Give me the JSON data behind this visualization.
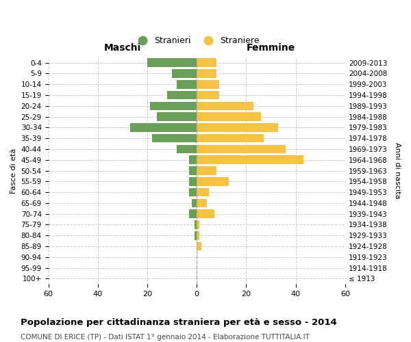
{
  "age_groups": [
    "100+",
    "95-99",
    "90-94",
    "85-89",
    "80-84",
    "75-79",
    "70-74",
    "65-69",
    "60-64",
    "55-59",
    "50-54",
    "45-49",
    "40-44",
    "35-39",
    "30-34",
    "25-29",
    "20-24",
    "15-19",
    "10-14",
    "5-9",
    "0-4"
  ],
  "birth_years": [
    "≤ 1913",
    "1914-1918",
    "1919-1923",
    "1924-1928",
    "1929-1933",
    "1934-1938",
    "1939-1943",
    "1944-1948",
    "1949-1953",
    "1954-1958",
    "1959-1963",
    "1964-1968",
    "1969-1973",
    "1974-1978",
    "1979-1983",
    "1984-1988",
    "1989-1993",
    "1994-1998",
    "1999-2003",
    "2004-2008",
    "2009-2013"
  ],
  "maschi": [
    0,
    0,
    0,
    0,
    1,
    1,
    3,
    2,
    3,
    3,
    3,
    3,
    8,
    18,
    27,
    16,
    19,
    12,
    8,
    10,
    20
  ],
  "femmine": [
    0,
    0,
    0,
    2,
    1,
    1,
    7,
    4,
    5,
    13,
    8,
    43,
    36,
    27,
    33,
    26,
    23,
    9,
    9,
    8,
    8
  ],
  "maschi_color": "#6a9f58",
  "femmine_color": "#f5c242",
  "background_color": "#ffffff",
  "grid_color": "#cccccc",
  "title": "Popolazione per cittadinanza straniera per età e sesso - 2014",
  "subtitle": "COMUNE DI ERICE (TP) - Dati ISTAT 1° gennaio 2014 - Elaborazione TUTTITALIA.IT",
  "xlabel_left": "Maschi",
  "xlabel_right": "Femmine",
  "ylabel_left": "Fasce di età",
  "ylabel_right": "Anni di nascita",
  "legend_stranieri": "Stranieri",
  "legend_straniere": "Straniere",
  "xlim": 60,
  "bar_height": 0.8
}
